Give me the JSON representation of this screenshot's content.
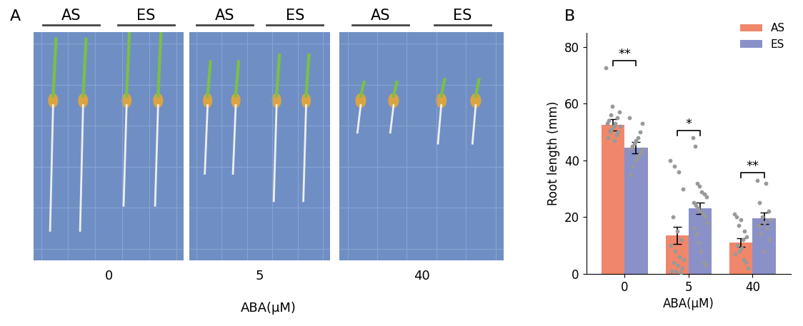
{
  "panel_a": {
    "label": "A",
    "groups": [
      "AS",
      "ES"
    ],
    "concentrations": [
      0,
      5,
      40
    ],
    "xlabel": "ABA(μM)"
  },
  "chart_data": {
    "type": "bar",
    "label": "B",
    "categories": [
      "0",
      "5",
      "40"
    ],
    "xlabel": "ABA(μM)",
    "ylabel": "Root length (mm)",
    "ylim": [
      0,
      85
    ],
    "yticks": [
      0,
      20,
      40,
      60,
      80
    ],
    "legend": "upper right",
    "annotations": [
      "**",
      "*",
      "**"
    ],
    "series": [
      {
        "name": "AS",
        "color": "#f0876a",
        "values": [
          52.5,
          13.5,
          11
        ],
        "errors": [
          2,
          3,
          1.5
        ],
        "points": [
          [
            72.5,
            59,
            57,
            56,
            55,
            54,
            53,
            53,
            52,
            52,
            51,
            50,
            50,
            49,
            48,
            47
          ],
          [
            40,
            38,
            36,
            30,
            20,
            15,
            12,
            10,
            8,
            6,
            5,
            4,
            3,
            2,
            1,
            1,
            0.5
          ],
          [
            21,
            20,
            19,
            17,
            15,
            13,
            12,
            10,
            9,
            8,
            7,
            5,
            4,
            2
          ]
        ]
      },
      {
        "name": "ES",
        "color": "#8a90c8",
        "values": [
          44.5,
          23,
          19.5
        ],
        "errors": [
          2,
          2,
          2
        ],
        "points": [
          [
            55,
            53,
            50,
            48,
            47,
            46,
            45,
            44,
            44,
            43,
            42,
            41,
            40,
            38,
            35
          ],
          [
            48,
            45,
            32,
            31,
            29,
            28,
            27,
            25,
            24,
            23,
            22,
            21,
            20,
            18,
            16,
            14,
            11,
            8,
            4,
            3
          ],
          [
            33,
            32,
            25,
            22,
            20,
            19,
            18,
            17,
            16,
            14,
            12,
            8
          ]
        ]
      }
    ]
  }
}
